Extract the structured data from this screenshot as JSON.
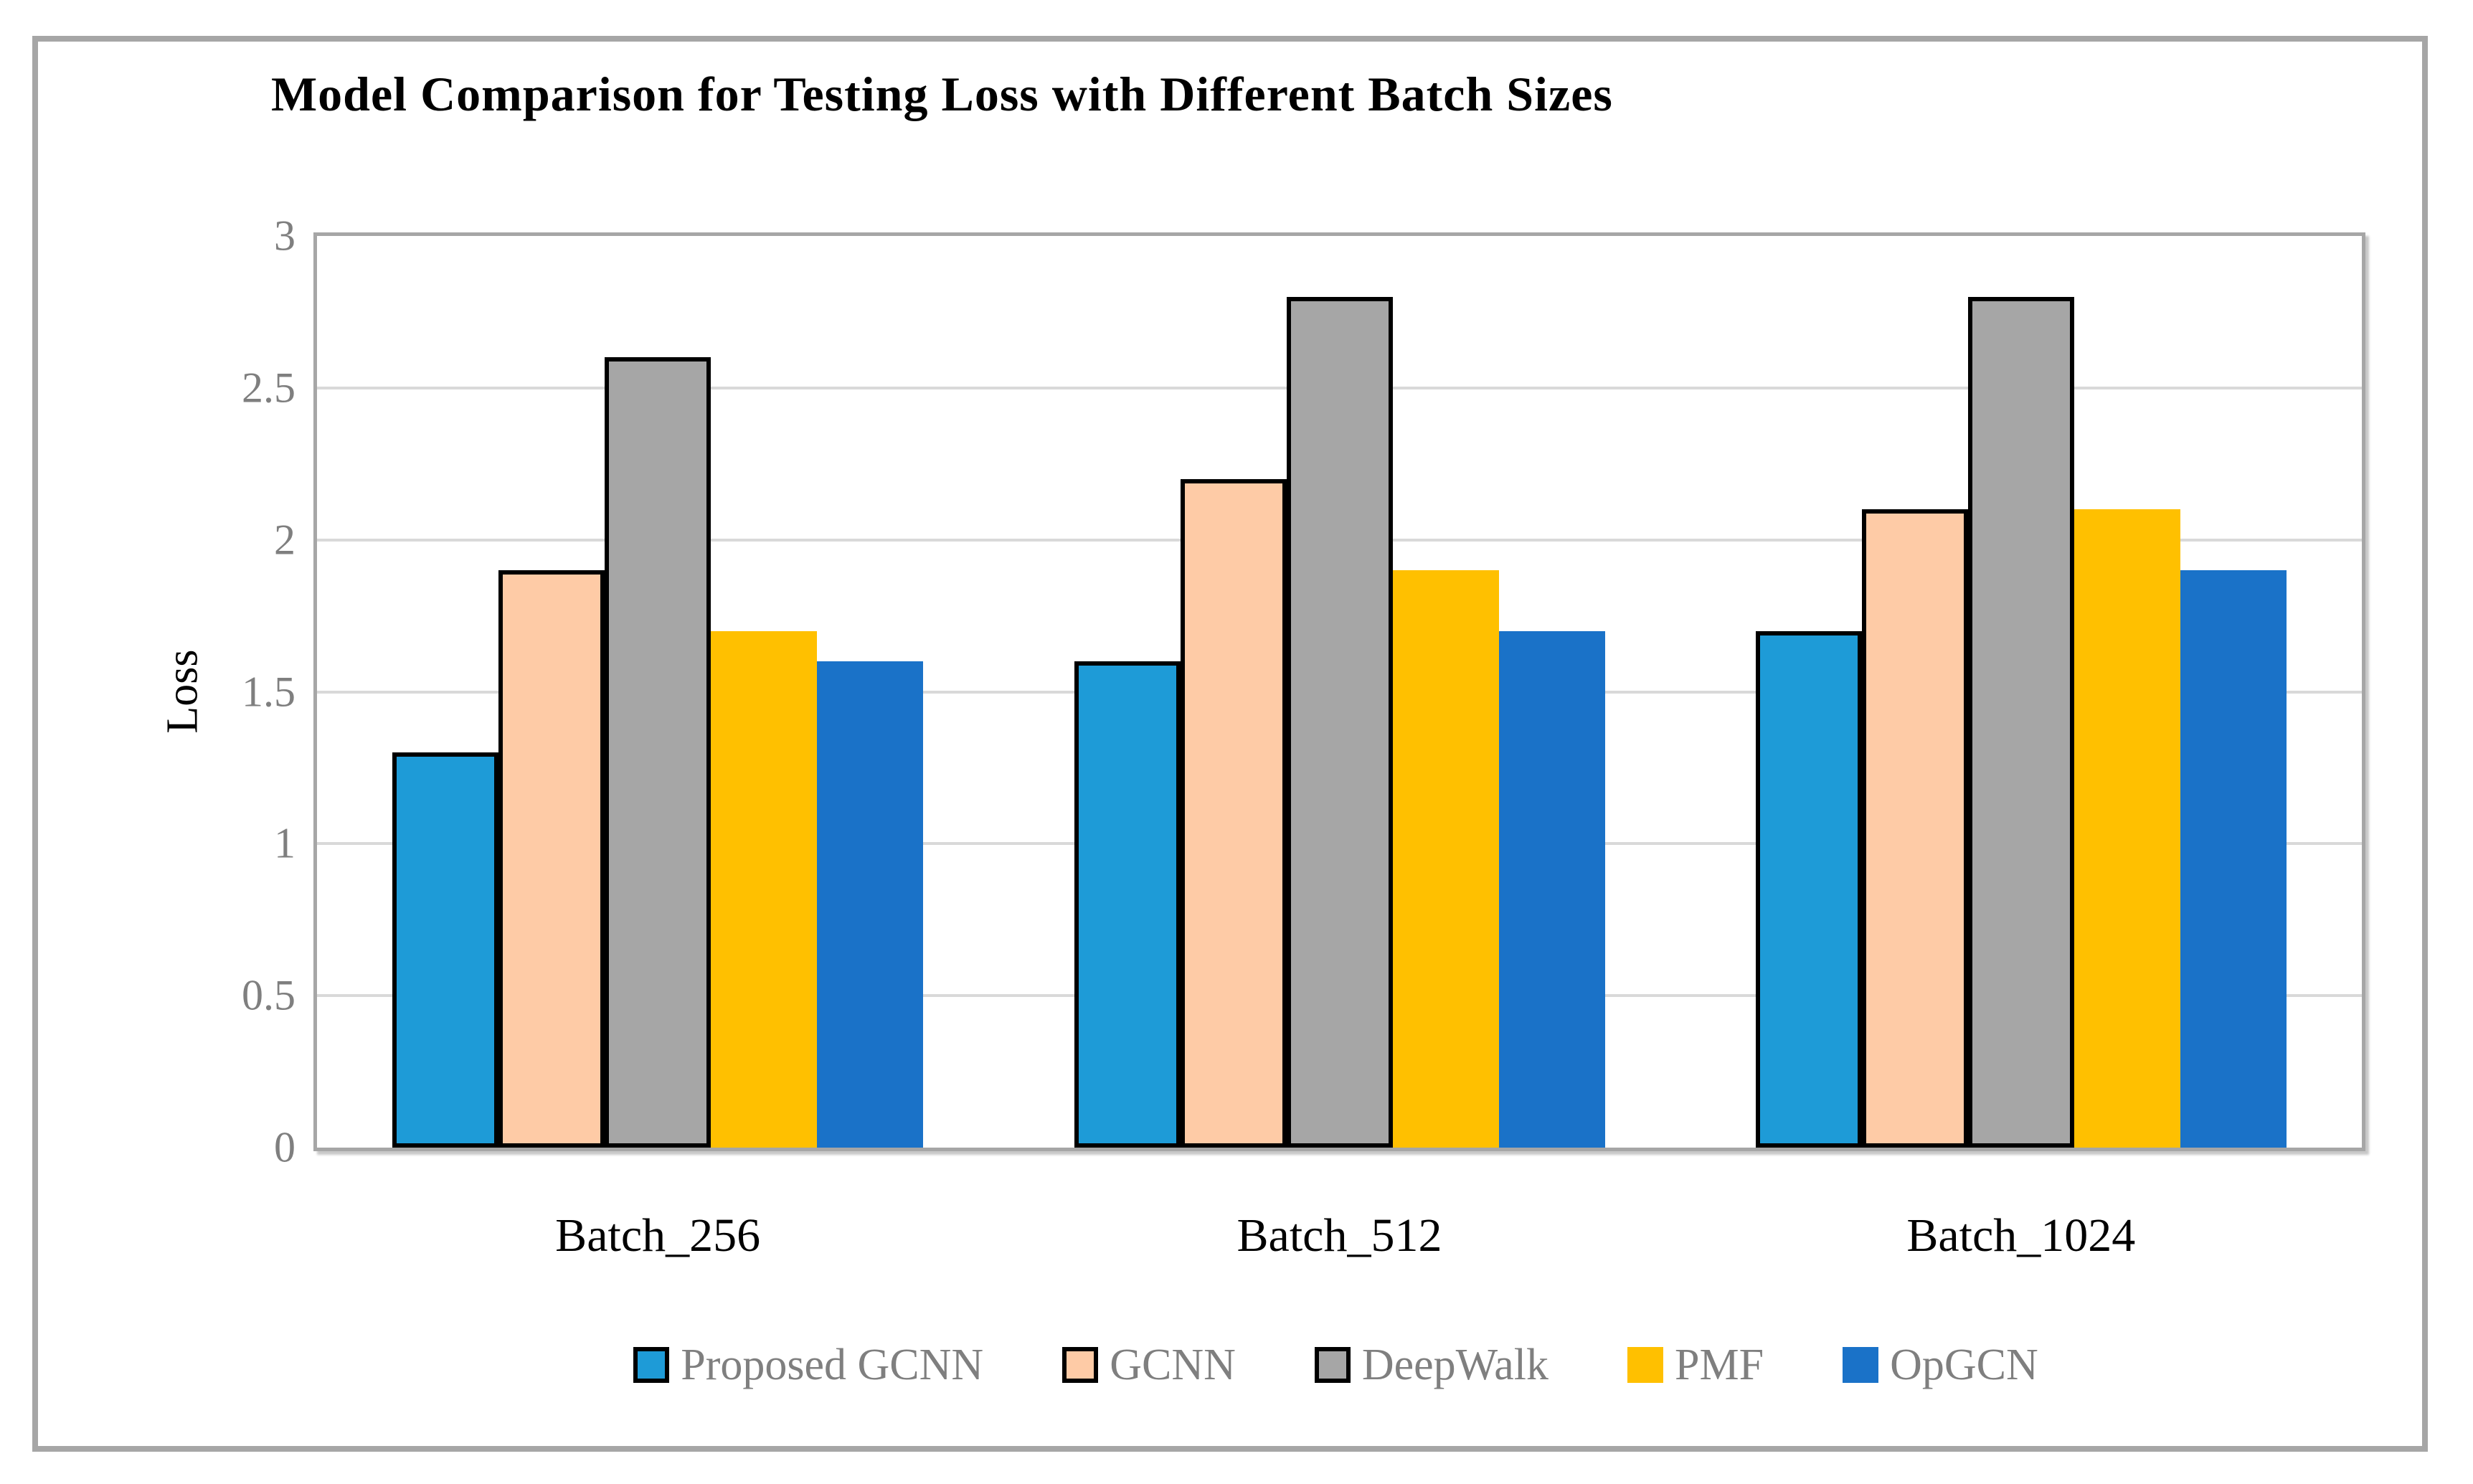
{
  "chart_data": {
    "type": "bar",
    "title": "Model Comparison for Testing Loss with Different Batch Sizes",
    "xlabel": "",
    "ylabel": "Loss",
    "categories": [
      "Batch_256",
      "Batch_512",
      "Batch_1024"
    ],
    "series": [
      {
        "name": "Proposed GCNN",
        "color": "#1e9bd7",
        "outlined": true,
        "values": [
          1.3,
          1.6,
          1.7
        ]
      },
      {
        "name": "GCNN",
        "color": "#fecba6",
        "outlined": true,
        "values": [
          1.9,
          2.2,
          2.1
        ]
      },
      {
        "name": "DeepWalk",
        "color": "#a6a6a6",
        "outlined": true,
        "values": [
          2.6,
          2.8,
          2.8
        ]
      },
      {
        "name": "PMF",
        "color": "#ffc000",
        "outlined": false,
        "values": [
          1.7,
          1.9,
          2.1
        ]
      },
      {
        "name": "OpGCN",
        "color": "#1a72c8",
        "outlined": false,
        "values": [
          1.6,
          1.7,
          1.9
        ]
      }
    ],
    "ylim": [
      0,
      3
    ],
    "ytick_step": 0.5,
    "ytick_labels": [
      "0",
      "0.5",
      "1",
      "1.5",
      "2",
      "2.5",
      "3"
    ],
    "grid": true,
    "legend_position": "bottom",
    "legend_entries": [
      "Proposed GCNN",
      "GCNN",
      "DeepWalk",
      "PMF",
      "OpGCN"
    ]
  },
  "style_colors": {
    "bar_outline": "#000000",
    "gridline": "#d9d9d9",
    "plot_border": "#a6a6a6",
    "figure_border": "#a6a6a6",
    "ytick_text": "#7f7f7f",
    "legend_text": "#7f7f7f",
    "title_text": "#000000",
    "category_text": "#000000"
  }
}
